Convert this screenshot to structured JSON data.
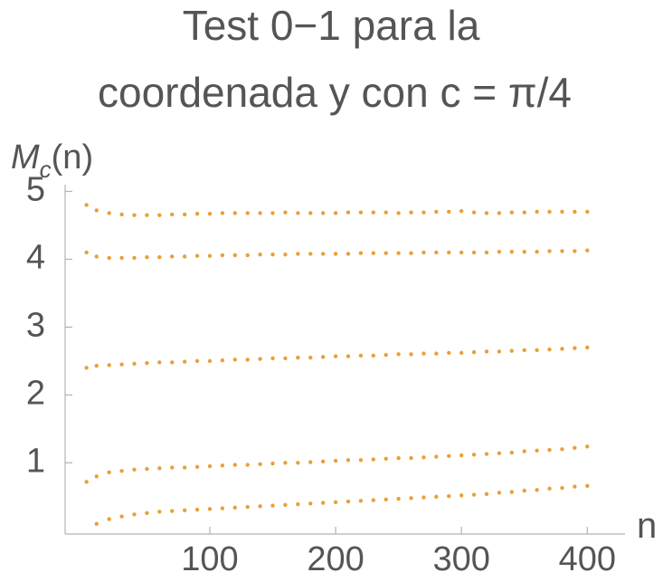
{
  "chart_data": {
    "type": "scatter",
    "title": [
      "Test 0−1 para la",
      "coordenada y con c = π/4"
    ],
    "ylabel": [
      "M",
      "c",
      "(n)"
    ],
    "xlabel": "n",
    "color": "#e8a03a",
    "xlim": [
      -15,
      430
    ],
    "ylim": [
      -0.05,
      5.1
    ],
    "xticks": [
      100,
      200,
      300,
      400
    ],
    "yticks": [
      1,
      2,
      3,
      4,
      5
    ],
    "x": [
      2,
      10,
      20,
      30,
      40,
      50,
      60,
      70,
      80,
      90,
      100,
      110,
      120,
      130,
      140,
      150,
      160,
      170,
      180,
      190,
      200,
      210,
      220,
      230,
      240,
      250,
      260,
      270,
      280,
      290,
      300,
      310,
      320,
      330,
      340,
      350,
      360,
      370,
      380,
      390,
      400,
      2,
      10,
      20,
      30,
      40,
      50,
      60,
      70,
      80,
      90,
      100,
      110,
      120,
      130,
      140,
      150,
      160,
      170,
      180,
      190,
      200,
      210,
      220,
      230,
      240,
      250,
      260,
      270,
      280,
      290,
      300,
      310,
      320,
      330,
      340,
      350,
      360,
      370,
      380,
      390,
      400,
      2,
      10,
      20,
      30,
      40,
      50,
      60,
      70,
      80,
      90,
      100,
      110,
      120,
      130,
      140,
      150,
      160,
      170,
      180,
      190,
      200,
      210,
      220,
      230,
      240,
      250,
      260,
      270,
      280,
      290,
      300,
      310,
      320,
      330,
      340,
      350,
      360,
      370,
      380,
      390,
      400,
      2,
      10,
      20,
      30,
      40,
      50,
      60,
      70,
      80,
      90,
      100,
      110,
      120,
      130,
      140,
      150,
      160,
      170,
      180,
      190,
      200,
      210,
      220,
      230,
      240,
      250,
      260,
      270,
      280,
      290,
      300,
      310,
      320,
      330,
      340,
      350,
      360,
      370,
      380,
      390,
      400,
      10,
      20,
      30,
      40,
      50,
      60,
      70,
      80,
      90,
      100,
      110,
      120,
      130,
      140,
      150,
      160,
      170,
      180,
      190,
      200,
      210,
      220,
      230,
      240,
      250,
      260,
      270,
      280,
      290,
      300,
      310,
      320,
      330,
      340,
      350,
      360,
      370,
      380,
      390,
      400
    ],
    "y": [
      4.8,
      4.72,
      4.68,
      4.66,
      4.65,
      4.65,
      4.65,
      4.66,
      4.66,
      4.67,
      4.67,
      4.68,
      4.68,
      4.68,
      4.68,
      4.68,
      4.69,
      4.68,
      4.68,
      4.68,
      4.68,
      4.69,
      4.69,
      4.69,
      4.69,
      4.68,
      4.69,
      4.69,
      4.7,
      4.7,
      4.71,
      4.69,
      4.68,
      4.68,
      4.69,
      4.69,
      4.7,
      4.7,
      4.7,
      4.7,
      4.7,
      4.1,
      4.04,
      4.02,
      4.02,
      4.02,
      4.03,
      4.03,
      4.04,
      4.04,
      4.05,
      4.05,
      4.06,
      4.06,
      4.06,
      4.07,
      4.07,
      4.07,
      4.08,
      4.08,
      4.08,
      4.08,
      4.08,
      4.09,
      4.09,
      4.09,
      4.09,
      4.09,
      4.1,
      4.1,
      4.1,
      4.1,
      4.1,
      4.1,
      4.11,
      4.11,
      4.11,
      4.11,
      4.12,
      4.12,
      4.12,
      4.13,
      2.4,
      2.43,
      2.44,
      2.45,
      2.46,
      2.47,
      2.48,
      2.48,
      2.49,
      2.5,
      2.5,
      2.51,
      2.52,
      2.52,
      2.53,
      2.54,
      2.54,
      2.55,
      2.55,
      2.56,
      2.57,
      2.57,
      2.58,
      2.58,
      2.59,
      2.6,
      2.6,
      2.61,
      2.61,
      2.62,
      2.62,
      2.63,
      2.64,
      2.64,
      2.65,
      2.66,
      2.66,
      2.67,
      2.68,
      2.69,
      2.7,
      0.72,
      0.8,
      0.86,
      0.88,
      0.9,
      0.91,
      0.92,
      0.93,
      0.93,
      0.94,
      0.95,
      0.96,
      0.97,
      0.97,
      0.98,
      0.99,
      1.0,
      1.0,
      1.01,
      1.02,
      1.03,
      1.04,
      1.04,
      1.05,
      1.06,
      1.07,
      1.07,
      1.08,
      1.09,
      1.1,
      1.11,
      1.12,
      1.13,
      1.14,
      1.15,
      1.17,
      1.18,
      1.19,
      1.2,
      1.22,
      1.24,
      0.1,
      0.17,
      0.21,
      0.24,
      0.26,
      0.28,
      0.29,
      0.3,
      0.31,
      0.32,
      0.33,
      0.34,
      0.35,
      0.36,
      0.37,
      0.38,
      0.39,
      0.4,
      0.41,
      0.42,
      0.43,
      0.44,
      0.45,
      0.46,
      0.47,
      0.48,
      0.49,
      0.5,
      0.51,
      0.52,
      0.53,
      0.54,
      0.56,
      0.57,
      0.59,
      0.6,
      0.62,
      0.63,
      0.65,
      0.66
    ]
  }
}
